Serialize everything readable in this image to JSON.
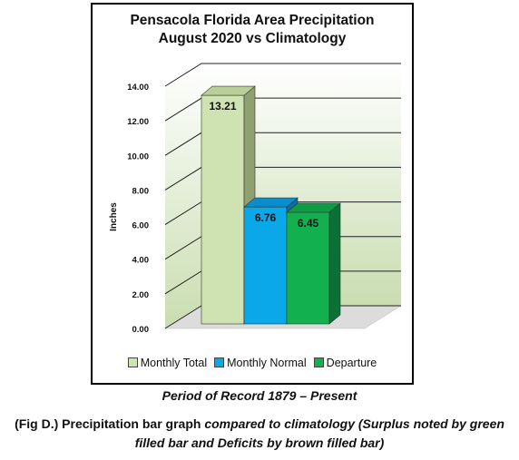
{
  "chart_data": {
    "type": "bar",
    "title_line1": "Pensacola Florida Area Precipitation",
    "title_line2": "August 2020 vs Climatology",
    "ylabel": "Inches",
    "xlabel": "",
    "ylim": [
      0,
      14
    ],
    "yticks": [
      "0.00",
      "2.00",
      "4.00",
      "6.00",
      "8.00",
      "10.00",
      "12.00",
      "14.00"
    ],
    "grid": true,
    "legend_position": "bottom",
    "series": [
      {
        "name": "Monthly Total",
        "value": 13.21,
        "label": "13.21",
        "color": "#cfe3b2"
      },
      {
        "name": "Monthly Normal",
        "value": 6.76,
        "label": "6.76",
        "color": "#0aa8e8"
      },
      {
        "name": "Departure",
        "value": 6.45,
        "label": "6.45",
        "color": "#13b050"
      }
    ]
  },
  "period_text": "Period of Record 1879 – Present",
  "caption": {
    "part1": "(Fig D.) Precipitation bar graph ",
    "part2": "compared to climatology (Surplus noted by green filled bar and Deficits by brown filled bar)"
  }
}
